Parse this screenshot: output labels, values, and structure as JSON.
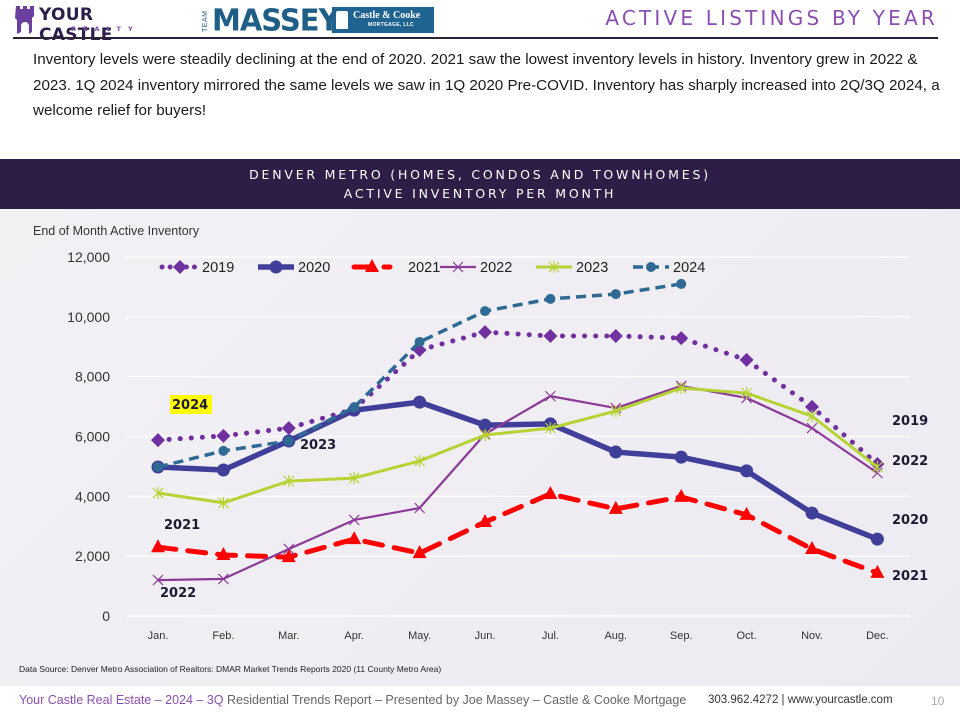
{
  "header": {
    "logo_left": {
      "name": "YOUR CASTLE",
      "sub": "REALTY"
    },
    "logo_right": {
      "team": "TEAM",
      "name": "MASSEY",
      "partner": "Castle & Cooke",
      "partner_sub": "MORTGAGE, LLC"
    },
    "title": "ACTIVE LISTINGS BY YEAR"
  },
  "intro": "Inventory levels were steadily declining at the end of 2020. 2021 saw the lowest inventory levels in history. Inventory grew in 2022 & 2023. 1Q 2024 inventory mirrored the same levels we saw in 1Q 2020 Pre-COVID. Inventory has sharply increased into 2Q/3Q 2024, a welcome relief for buyers!",
  "banner": {
    "line1": "DENVER METRO (HOMES, CONDOS AND TOWNHOMES)",
    "line2": "ACTIVE INVENTORY PER MONTH"
  },
  "chart_data": {
    "type": "line",
    "title": "Denver Metro (Homes, Condos and Townhomes) Active Inventory per Month",
    "ylabel": "End of Month Active Inventory",
    "xlabel": "",
    "categories": [
      "Jan.",
      "Feb.",
      "Mar.",
      "Apr.",
      "May.",
      "Jun.",
      "Jul.",
      "Aug.",
      "Sep.",
      "Oct.",
      "Nov.",
      "Dec."
    ],
    "ylim": [
      0,
      12000
    ],
    "yticks": [
      0,
      2000,
      4000,
      6000,
      8000,
      10000,
      12000
    ],
    "ytick_labels": [
      "0",
      "2,000",
      "4,000",
      "6,000",
      "8,000",
      "10,000",
      "12,000"
    ],
    "grid": true,
    "legend_position": "top",
    "series": [
      {
        "name": "2019",
        "color": "#7030a0",
        "style": "dotted",
        "marker": "diamond",
        "values": [
          5880,
          6020,
          6280,
          6920,
          8890,
          9490,
          9360,
          9360,
          9290,
          8560,
          6990,
          5080
        ]
      },
      {
        "name": "2020",
        "color": "#3f3f9a",
        "style": "solid-thick",
        "marker": "circle",
        "values": [
          4980,
          4880,
          5850,
          6880,
          7150,
          6380,
          6420,
          5480,
          5310,
          4850,
          3440,
          2570
        ]
      },
      {
        "name": "2021",
        "color": "#ff0000",
        "style": "dashed-thick",
        "marker": "triangle",
        "values": [
          2300,
          2040,
          1970,
          2570,
          2100,
          3140,
          4080,
          3580,
          3980,
          3380,
          2240,
          1440
        ]
      },
      {
        "name": "2022",
        "color": "#8b3a96",
        "style": "solid",
        "marker": "x",
        "values": [
          1200,
          1240,
          2240,
          3210,
          3610,
          6080,
          7350,
          6950,
          7690,
          7290,
          6280,
          4780
        ]
      },
      {
        "name": "2023",
        "color": "#b5d334",
        "style": "solid",
        "marker": "star",
        "values": [
          4110,
          3780,
          4510,
          4610,
          5180,
          6050,
          6280,
          6850,
          7620,
          7450,
          6680,
          4980
        ]
      },
      {
        "name": "2024",
        "color": "#2e6a94",
        "style": "dashed",
        "marker": "circle-small",
        "values": [
          4980,
          5520,
          5850,
          6980,
          9160,
          10190,
          10600,
          10760,
          11100,
          null,
          null,
          null
        ]
      }
    ],
    "annotations": [
      {
        "text": "2024",
        "highlight": "#ffff00"
      },
      {
        "text": "2023"
      },
      {
        "text": "2021"
      },
      {
        "text": "2022"
      },
      {
        "text": "2019"
      },
      {
        "text": "2022"
      },
      {
        "text": "2020"
      },
      {
        "text": "2021"
      }
    ]
  },
  "source": "Data Source:  Denver Metro Association of Realtors: DMAR Market Trends Reports 2020 (11 County Metro Area)",
  "footer": {
    "accent": "Your Castle Real Estate – 2024 – 3Q",
    "rest": " Residential Trends Report – Presented by Joe Massey – Castle & Cooke Mortgage",
    "contact": "303.962.4272 | www.yourcastle.com",
    "page": "10"
  }
}
